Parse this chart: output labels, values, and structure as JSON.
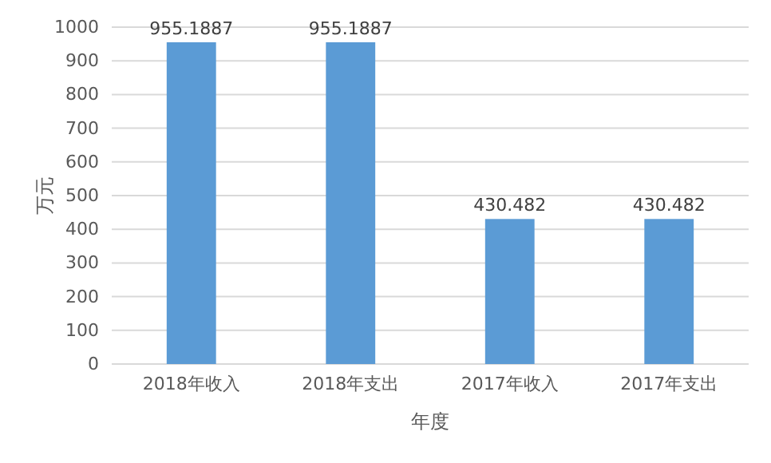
{
  "chart_data": {
    "type": "bar",
    "xlabel": "年度",
    "ylabel": "万元",
    "categories": [
      "2018年收入",
      "2018年支出",
      "2017年收入",
      "2017年支出"
    ],
    "values": [
      955.1887,
      955.1887,
      430.482,
      430.482
    ],
    "color": "#5b9bd5",
    "ylim": [
      0,
      1000
    ],
    "yticks": [
      0,
      100,
      200,
      300,
      400,
      500,
      600,
      700,
      800,
      900,
      1000
    ],
    "grid": "y",
    "data_labels": true
  }
}
